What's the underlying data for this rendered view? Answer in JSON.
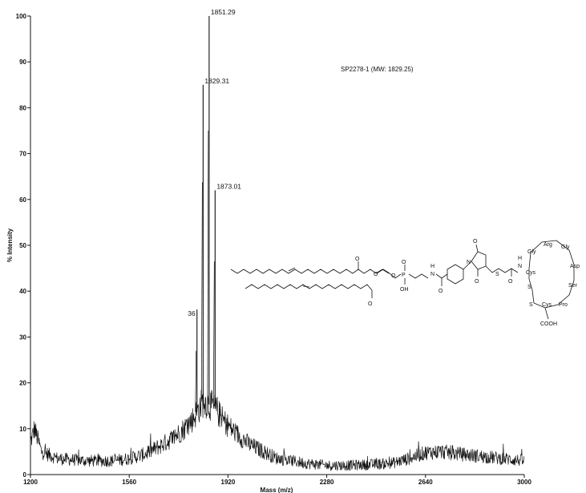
{
  "chart_data": {
    "type": "line",
    "title": "SP2278-1 (MW: 1829.25)",
    "xlabel": "Mass (m/z)",
    "ylabel": "% Intensity",
    "xlim": [
      1200,
      3000
    ],
    "ylim": [
      0,
      100
    ],
    "x_ticks": [
      "1200",
      "1560",
      "1920",
      "2280",
      "2640",
      "3000"
    ],
    "y_ticks": [
      "0",
      "10",
      "20",
      "30",
      "40",
      "50",
      "60",
      "70",
      "80",
      "90",
      "100"
    ],
    "grid": false,
    "legend": "none",
    "color": "#111111",
    "peaks": [
      {
        "mass": 1851.29,
        "intensity": 100,
        "label": "1851.29"
      },
      {
        "mass": 1829.31,
        "intensity": 85,
        "label": "1829.31"
      },
      {
        "mass": 1873.01,
        "intensity": 62,
        "label": "1873.01"
      },
      {
        "mass": 1807,
        "intensity": 36,
        "label": "36"
      }
    ],
    "envelope": {
      "x": [
        1200,
        1215,
        1240,
        1300,
        1400,
        1500,
        1560,
        1620,
        1680,
        1720,
        1760,
        1790,
        1810,
        1830,
        1860,
        1880,
        1900,
        1940,
        2000,
        2100,
        2200,
        2280,
        2360,
        2440,
        2520,
        2580,
        2640,
        2700,
        2760,
        2840,
        2920,
        3000
      ],
      "y": [
        7,
        10,
        5,
        3.5,
        3,
        3,
        3.5,
        4.5,
        6.5,
        8,
        10,
        12,
        14,
        16,
        15,
        14,
        12,
        9.5,
        6.5,
        3.5,
        2.5,
        2,
        2,
        2.2,
        2.5,
        3.5,
        4.8,
        5,
        4.5,
        4,
        3.5,
        3
      ]
    }
  },
  "structure": {
    "labels": {
      "o": "O",
      "p": "P",
      "oh": "OH",
      "h": "H",
      "n": "N",
      "s": "S",
      "arg": "Arg",
      "gly1": "Gly",
      "gly2": "Gly",
      "asp": "Asp",
      "ser": "Ser",
      "pro": "Pro",
      "cys1": "Cys",
      "cys2": "Cys",
      "cooh": "COOH"
    }
  }
}
